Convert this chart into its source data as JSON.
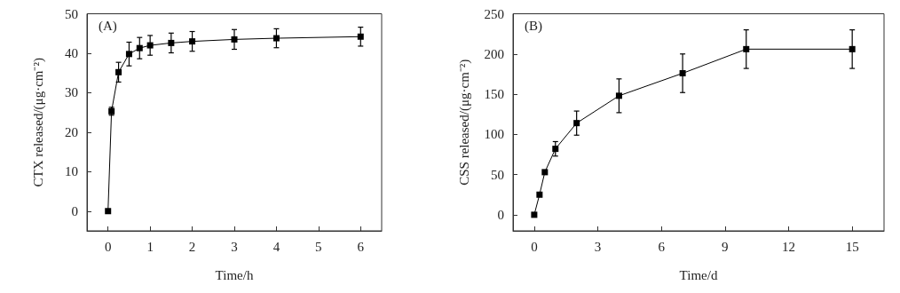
{
  "chart_data": [
    {
      "type": "line",
      "title": "(A)",
      "xlabel": "Time/h",
      "ylabel": "CTX released/(μg·cm⁻²)",
      "x": [
        0,
        0.083,
        0.25,
        0.5,
        0.75,
        1,
        1.5,
        2,
        3,
        4,
        6
      ],
      "series": [
        {
          "color": "#000000",
          "values": [
            0,
            25.3,
            35.2,
            39.8,
            41.3,
            42,
            42.6,
            43,
            43.5,
            43.8,
            44.2
          ],
          "errors": [
            null,
            1,
            2.5,
            3,
            2.7,
            2.5,
            2.5,
            2.5,
            2.5,
            2.4,
            2.4
          ]
        }
      ],
      "xlim": [
        -0.5,
        6.5
      ],
      "xticks": [
        0,
        1,
        2,
        3,
        4,
        5,
        6
      ],
      "ylim": [
        -5,
        50
      ],
      "yticks": [
        0,
        10,
        20,
        30,
        40,
        50
      ],
      "grid": false,
      "marker": "square",
      "line_style": "solid"
    },
    {
      "type": "line",
      "title": "(B)",
      "xlabel": "Time/d",
      "ylabel": "CSS released/(μg·cm⁻²)",
      "x": [
        0,
        0.25,
        0.5,
        1,
        2,
        4,
        7,
        10,
        15
      ],
      "series": [
        {
          "color": "#000000",
          "values": [
            0,
            25,
            53,
            82,
            114,
            148,
            176,
            206,
            206
          ],
          "errors": [
            null,
            null,
            null,
            9,
            15,
            21,
            24,
            24,
            24
          ]
        }
      ],
      "xlim": [
        -1,
        16.5
      ],
      "xticks": [
        0,
        3,
        6,
        9,
        12,
        15
      ],
      "ylim": [
        -20,
        250
      ],
      "yticks": [
        0,
        50,
        100,
        150,
        200,
        250
      ],
      "grid": false,
      "marker": "square",
      "line_style": "solid"
    }
  ]
}
